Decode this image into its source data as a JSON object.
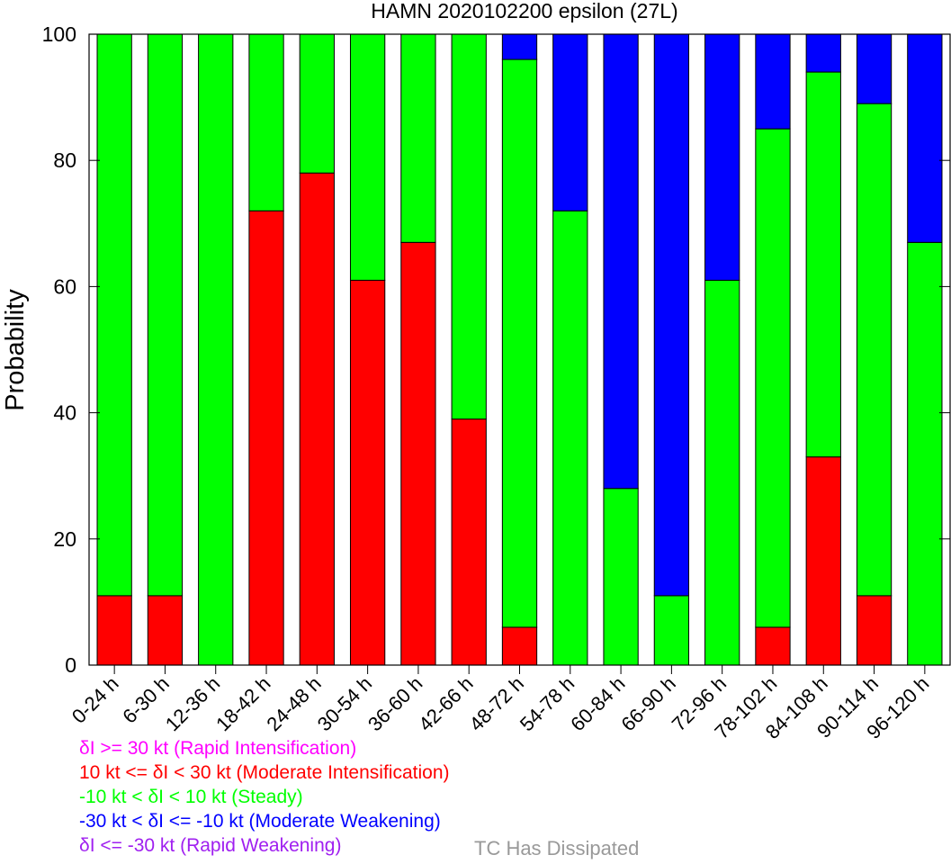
{
  "chart_data": {
    "type": "bar",
    "stacked": true,
    "title": "HAMN 2020102200 epsilon (27L)",
    "xlabel": "",
    "ylabel": "Probability",
    "ylim": [
      0,
      100
    ],
    "yticks": [
      0,
      20,
      40,
      60,
      80,
      100
    ],
    "grid": false,
    "categories": [
      "0-24 h",
      "6-30 h",
      "12-36 h",
      "18-42 h",
      "24-48 h",
      "30-54 h",
      "36-60 h",
      "42-66 h",
      "48-72 h",
      "54-78 h",
      "60-84 h",
      "66-90 h",
      "72-96 h",
      "78-102 h",
      "84-108 h",
      "90-114 h",
      "96-120 h"
    ],
    "series": [
      {
        "name": "δI >= 30 kt (Rapid Intensification)",
        "color": "#ff00ff",
        "values": [
          0,
          0,
          0,
          0,
          0,
          0,
          0,
          0,
          0,
          0,
          0,
          0,
          0,
          0,
          0,
          0,
          0
        ]
      },
      {
        "name": "10 kt <= δI < 30 kt (Moderate Intensification)",
        "color": "#ff0000",
        "values": [
          11,
          11,
          0,
          72,
          78,
          61,
          67,
          39,
          6,
          0,
          0,
          0,
          0,
          6,
          33,
          11,
          0
        ]
      },
      {
        "name": "-10 kt < δI < 10 kt (Steady)",
        "color": "#00ff00",
        "values": [
          89,
          89,
          100,
          28,
          22,
          39,
          33,
          61,
          90,
          72,
          28,
          11,
          61,
          79,
          61,
          78,
          67
        ]
      },
      {
        "name": "-30 kt < δI <= -10 kt (Moderate Weakening)",
        "color": "#0000ff",
        "values": [
          0,
          0,
          0,
          0,
          0,
          0,
          0,
          0,
          4,
          28,
          72,
          89,
          39,
          15,
          6,
          11,
          33
        ]
      },
      {
        "name": "δI <= -30 kt (Rapid Weakening)",
        "color": "#a020f0",
        "values": [
          0,
          0,
          0,
          0,
          0,
          0,
          0,
          0,
          0,
          0,
          0,
          0,
          0,
          0,
          0,
          0,
          0
        ]
      }
    ],
    "extra_legend": {
      "label": "TC Has Dissipated",
      "color": "#999999"
    },
    "legend_placement": "bottom-left"
  }
}
